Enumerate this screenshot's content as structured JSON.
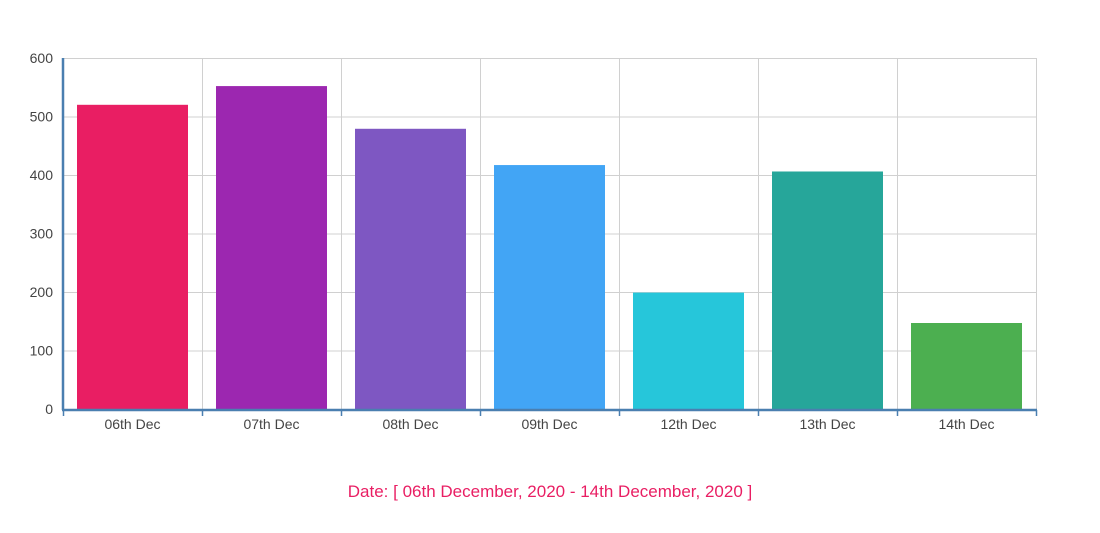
{
  "chart_data": {
    "type": "bar",
    "categories": [
      "06th Dec",
      "07th Dec",
      "08th Dec",
      "09th Dec",
      "12th Dec",
      "13th Dec",
      "14th Dec"
    ],
    "values": [
      520,
      552,
      479,
      417,
      199,
      406,
      147
    ],
    "bar_colors": [
      "#e91e63",
      "#9c27b0",
      "#7e57c2",
      "#42a5f5",
      "#26c6da",
      "#26a69a",
      "#4caf50"
    ],
    "ylim": [
      0,
      600
    ],
    "yticks": [
      0,
      100,
      200,
      300,
      400,
      500,
      600
    ],
    "grid": true,
    "axis_color": "#4a7fb0",
    "grid_color": "#d0d0d0"
  },
  "caption": {
    "text": "Date: [ 06th December, 2020 - 14th December, 2020 ]",
    "color": "#e91e63"
  }
}
